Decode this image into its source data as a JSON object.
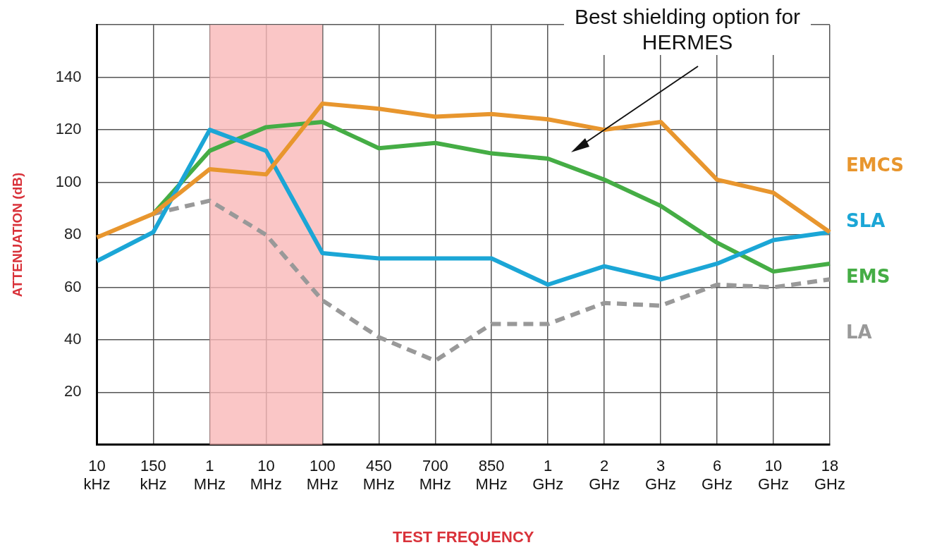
{
  "chart_data": {
    "type": "line",
    "xlabel": "TEST FREQUENCY",
    "ylabel": "ATTENUATION (dB)",
    "categories": [
      "10 kHz",
      "150 kHz",
      "1 MHz",
      "10 MHz",
      "100 MHz",
      "450 MHz",
      "700 MHz",
      "850 MHz",
      "1 GHz",
      "2 GHz",
      "3 GHz",
      "6 GHz",
      "10 GHz",
      "18 GHz"
    ],
    "series": [
      {
        "name": "EMCS",
        "color": "#e8962e",
        "values": [
          79,
          88,
          105,
          103,
          130,
          128,
          125,
          126,
          124,
          120,
          123,
          101,
          96,
          81
        ]
      },
      {
        "name": "SLA",
        "color": "#1ba6d6",
        "values": [
          70,
          81,
          120,
          112,
          73,
          71,
          71,
          71,
          61,
          68,
          63,
          69,
          78,
          81
        ]
      },
      {
        "name": "EMS",
        "color": "#45ad45",
        "values": [
          null,
          88,
          112,
          121,
          123,
          113,
          115,
          111,
          109,
          101,
          91,
          77,
          66,
          69
        ]
      },
      {
        "name": "LA",
        "color": "#999999",
        "line_style": "dashed",
        "values": [
          null,
          88,
          93,
          80,
          55,
          41,
          32,
          46,
          46,
          54,
          53,
          61,
          60,
          63
        ]
      }
    ],
    "ylim": [
      0,
      160
    ],
    "yticks": [
      {
        "value": 0,
        "label": null
      },
      20,
      40,
      60,
      80,
      100,
      120,
      140,
      {
        "value": 160,
        "label": null
      }
    ],
    "bands": [
      {
        "axis": "x",
        "from": "1 MHz",
        "to": "100 MHz",
        "color": "#f9b8b8"
      }
    ],
    "annotations": [
      "Best shielding option for HERMES"
    ],
    "grid": true,
    "legend": "right",
    "marker": "none",
    "line_style": "solid"
  }
}
